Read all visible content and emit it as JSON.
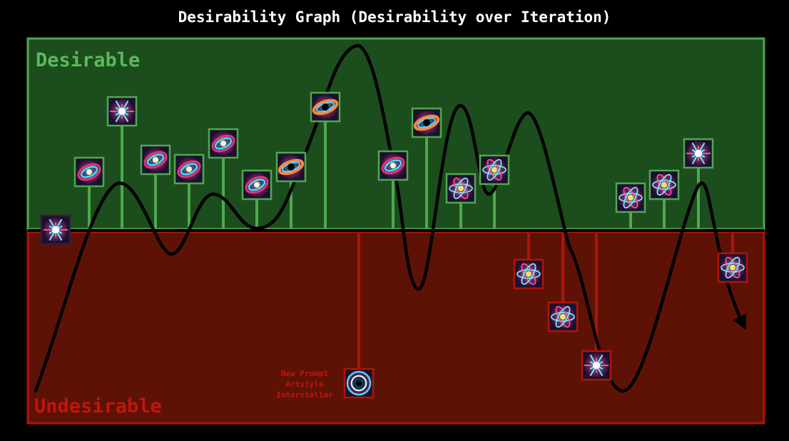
{
  "title": "Desirability Graph (Desirability over Iteration)",
  "zones": {
    "desirable_label": "Desirable",
    "undesirable_label": "Undesirable"
  },
  "annotation": {
    "lines": [
      "New Prompt",
      "Artstyle",
      "Interstellar"
    ]
  },
  "colors": {
    "background": "#000000",
    "desirable_fill": "#1c4d1c",
    "desirable_border": "#4fa84f",
    "desirable_text": "#5cb85c",
    "undesirable_fill": "#5e1206",
    "undesirable_border": "#b0140a",
    "undesirable_text": "#c0160b",
    "curve": "#000000",
    "title": "#ffffff"
  },
  "iterations": [
    {
      "zone": "neutral",
      "icon": "sparkle-burst-icon"
    },
    {
      "zone": "desirable",
      "icon": "spiral-galaxy-icon"
    },
    {
      "zone": "desirable",
      "icon": "starburst-icon"
    },
    {
      "zone": "desirable",
      "icon": "spiral-galaxy-icon"
    },
    {
      "zone": "desirable",
      "icon": "spiral-galaxy-icon"
    },
    {
      "zone": "desirable",
      "icon": "spiral-galaxy-icon"
    },
    {
      "zone": "desirable",
      "icon": "spiral-galaxy-icon"
    },
    {
      "zone": "desirable",
      "icon": "black-hole-icon"
    },
    {
      "zone": "desirable",
      "icon": "black-hole-icon"
    },
    {
      "zone": "undesirable",
      "icon": "black-hole-eye-icon"
    },
    {
      "zone": "desirable",
      "icon": "spiral-galaxy-icon"
    },
    {
      "zone": "desirable",
      "icon": "black-hole-icon"
    },
    {
      "zone": "desirable",
      "icon": "atom-icon"
    },
    {
      "zone": "desirable",
      "icon": "atom-icon"
    },
    {
      "zone": "undesirable",
      "icon": "atom-icon"
    },
    {
      "zone": "undesirable",
      "icon": "atom-icon"
    },
    {
      "zone": "undesirable",
      "icon": "starburst-icon"
    },
    {
      "zone": "desirable",
      "icon": "atom-icon"
    },
    {
      "zone": "desirable",
      "icon": "atom-icon"
    },
    {
      "zone": "desirable",
      "icon": "starburst-icon"
    },
    {
      "zone": "undesirable",
      "icon": "atom-icon"
    }
  ]
}
